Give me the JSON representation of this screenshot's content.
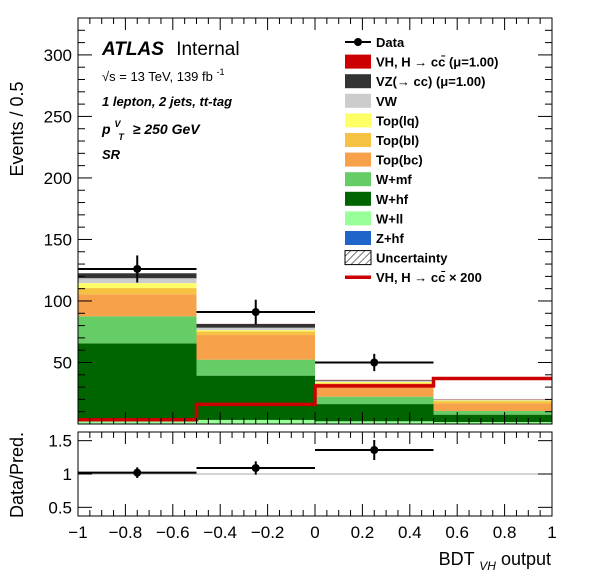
{
  "chart_data": [
    {
      "type": "bar",
      "panel": "main",
      "stacked": true,
      "bin_edges": [
        -1,
        -0.5,
        0,
        0.5,
        1
      ],
      "ylabel": "Events / 0.5",
      "ylim": [
        0,
        330
      ],
      "yticks": [
        50,
        100,
        150,
        200,
        250,
        300
      ],
      "text_block": {
        "atlas": "ATLAS",
        "status": "Internal",
        "energy": "√s = 13 TeV, 139 fb",
        "energy_sup": "-1",
        "region": "1 lepton, 2 jets, tt-tag",
        "ptv_p": "p",
        "ptv_sup": "V",
        "ptv_sub": "T",
        "ptv_cut": "≥ 250 GeV",
        "sr": "SR"
      },
      "series": [
        {
          "name": "Z+hf",
          "color": "#1f64c8",
          "values": [
            0.5,
            0.3,
            0.2,
            0.1
          ]
        },
        {
          "name": "W+ll",
          "color": "#99ff99",
          "values": [
            2,
            3,
            2,
            1.5
          ]
        },
        {
          "name": "W+hf",
          "color": "#006400",
          "values": [
            63,
            36,
            14,
            6
          ]
        },
        {
          "name": "W+mf",
          "color": "#66cc66",
          "values": [
            22,
            13,
            6,
            3
          ]
        },
        {
          "name": "Top(bc)",
          "color": "#f7a14b",
          "values": [
            18,
            20,
            8,
            6
          ]
        },
        {
          "name": "Top(bl)",
          "color": "#f5c242",
          "values": [
            5,
            3,
            3,
            2
          ]
        },
        {
          "name": "Top(lq)",
          "color": "#ffff66",
          "values": [
            4,
            1,
            1,
            0.5
          ]
        },
        {
          "name": "VW",
          "color": "#cccccc",
          "values": [
            4,
            2,
            1,
            0.5
          ]
        },
        {
          "name": "VZ(→ cc) (μ=1.00)",
          "color": "#333333",
          "values": [
            4,
            3,
            0.5,
            0.2
          ]
        },
        {
          "name": "VH, H → cc (μ=1.00)",
          "color": "#cc0000",
          "values": [
            0.02,
            0.08,
            0.16,
            0.19
          ]
        }
      ],
      "signal_overlay": {
        "name": "VH, H → cc × 200",
        "color": "#cc0000",
        "values": [
          3.5,
          16,
          31,
          37
        ]
      },
      "data_points": {
        "name": "Data",
        "x": [
          -0.75,
          -0.25,
          0.25,
          0.75
        ],
        "y": [
          126,
          91,
          50,
          null
        ],
        "yerr": [
          11,
          10,
          7,
          null
        ]
      },
      "legend": {
        "placement": "top-right",
        "entries": [
          {
            "label": "Data",
            "style": "marker"
          },
          {
            "label": "VH, H  → cc̄ (μ=1.00)",
            "style": "box",
            "color": "#cc0000"
          },
          {
            "label": "VZ(→ cc) (μ=1.00)",
            "style": "box",
            "color": "#333333"
          },
          {
            "label": "VW",
            "style": "box",
            "color": "#cccccc"
          },
          {
            "label": "Top(lq)",
            "style": "box",
            "color": "#ffff66"
          },
          {
            "label": "Top(bl)",
            "style": "box",
            "color": "#f5c242"
          },
          {
            "label": "Top(bc)",
            "style": "box",
            "color": "#f7a14b"
          },
          {
            "label": "W+mf",
            "style": "box",
            "color": "#66cc66"
          },
          {
            "label": "W+hf",
            "style": "box",
            "color": "#006400"
          },
          {
            "label": "W+ll",
            "style": "box",
            "color": "#99ff99"
          },
          {
            "label": "Z+hf",
            "style": "box",
            "color": "#1f64c8"
          },
          {
            "label": "Uncertainty",
            "style": "hatch"
          },
          {
            "label": "VH, H  → cc̄  × 200",
            "style": "line",
            "color": "#cc0000"
          }
        ]
      }
    },
    {
      "type": "scatter",
      "panel": "ratio",
      "ylabel": "Data/Pred.",
      "xlabel": "BDT",
      "xlabel_sub": "VH",
      "xlabel_suffix": " output",
      "xlim": [
        -1,
        1
      ],
      "ylim": [
        0.37,
        1.63
      ],
      "xticks": [
        -1,
        -0.8,
        -0.6,
        -0.4,
        -0.2,
        0,
        0.2,
        0.4,
        0.6,
        0.8,
        1
      ],
      "yticks": [
        0.5,
        1,
        1.5
      ],
      "reference_line": 1,
      "x": [
        -0.75,
        -0.25,
        0.25
      ],
      "xerr": 0.25,
      "y": [
        1.02,
        1.09,
        1.36
      ],
      "yerr": [
        0.08,
        0.1,
        0.15
      ]
    }
  ]
}
